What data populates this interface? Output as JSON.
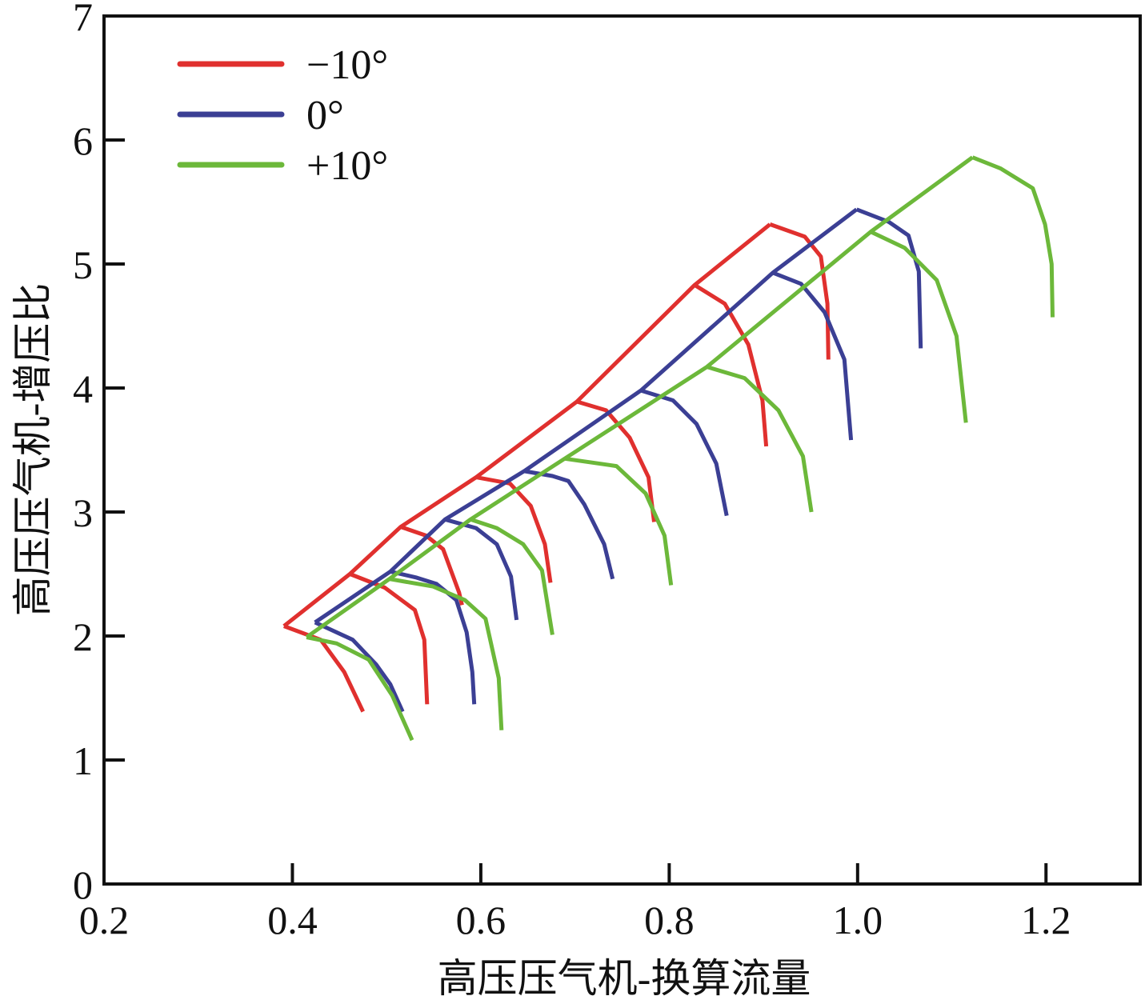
{
  "chart_data": {
    "type": "line",
    "title": "",
    "xlabel": "高压压气机-换算流量",
    "ylabel": "高压压气机-增压比",
    "xlim": [
      0.2,
      1.3
    ],
    "ylim": [
      0,
      7
    ],
    "xticks": [
      0.2,
      0.4,
      0.6,
      0.8,
      1.0,
      1.2
    ],
    "xtick_labels": [
      "0.2",
      "0.4",
      "0.6",
      "0.8",
      "1.0",
      "1.2"
    ],
    "yticks": [
      0,
      1,
      2,
      3,
      4,
      5,
      6,
      7
    ],
    "ytick_labels": [
      "0",
      "1",
      "2",
      "3",
      "4",
      "5",
      "6",
      "7"
    ],
    "grid": false,
    "legend_position": "top-left",
    "series": [
      {
        "name": "−10°",
        "color": "#e0302e",
        "surge_line": [
          [
            0.391,
            2.08
          ],
          [
            0.461,
            2.5
          ],
          [
            0.515,
            2.88
          ],
          [
            0.595,
            3.28
          ],
          [
            0.702,
            3.89
          ],
          [
            0.827,
            4.83
          ],
          [
            0.907,
            5.32
          ]
        ],
        "speed_lines": [
          [
            [
              0.391,
              2.08
            ],
            [
              0.43,
              1.97
            ],
            [
              0.455,
              1.71
            ],
            [
              0.475,
              1.39
            ]
          ],
          [
            [
              0.461,
              2.5
            ],
            [
              0.498,
              2.39
            ],
            [
              0.53,
              2.21
            ],
            [
              0.54,
              1.97
            ],
            [
              0.543,
              1.45
            ]
          ],
          [
            [
              0.515,
              2.88
            ],
            [
              0.542,
              2.81
            ],
            [
              0.56,
              2.7
            ],
            [
              0.577,
              2.35
            ],
            [
              0.58,
              2.25
            ]
          ],
          [
            [
              0.595,
              3.28
            ],
            [
              0.631,
              3.23
            ],
            [
              0.653,
              3.05
            ],
            [
              0.668,
              2.74
            ],
            [
              0.674,
              2.43
            ]
          ],
          [
            [
              0.702,
              3.89
            ],
            [
              0.733,
              3.82
            ],
            [
              0.758,
              3.6
            ],
            [
              0.778,
              3.28
            ],
            [
              0.784,
              2.92
            ]
          ],
          [
            [
              0.827,
              4.83
            ],
            [
              0.859,
              4.68
            ],
            [
              0.884,
              4.35
            ],
            [
              0.899,
              3.9
            ],
            [
              0.903,
              3.53
            ]
          ],
          [
            [
              0.907,
              5.32
            ],
            [
              0.944,
              5.22
            ],
            [
              0.961,
              5.06
            ],
            [
              0.968,
              4.68
            ],
            [
              0.969,
              4.23
            ]
          ]
        ]
      },
      {
        "name": "0°",
        "color": "#3b3f94",
        "surge_line": [
          [
            0.424,
            2.11
          ],
          [
            0.504,
            2.52
          ],
          [
            0.562,
            2.94
          ],
          [
            0.646,
            3.33
          ],
          [
            0.77,
            3.98
          ],
          [
            0.91,
            4.93
          ],
          [
            0.999,
            5.44
          ]
        ],
        "speed_lines": [
          [
            [
              0.424,
              2.11
            ],
            [
              0.464,
              1.97
            ],
            [
              0.489,
              1.77
            ],
            [
              0.504,
              1.61
            ],
            [
              0.517,
              1.39
            ]
          ],
          [
            [
              0.504,
              2.52
            ],
            [
              0.532,
              2.47
            ],
            [
              0.553,
              2.42
            ],
            [
              0.574,
              2.29
            ],
            [
              0.585,
              2.03
            ],
            [
              0.591,
              1.71
            ],
            [
              0.593,
              1.45
            ]
          ],
          [
            [
              0.562,
              2.94
            ],
            [
              0.595,
              2.87
            ],
            [
              0.617,
              2.74
            ],
            [
              0.632,
              2.48
            ],
            [
              0.638,
              2.13
            ]
          ],
          [
            [
              0.646,
              3.33
            ],
            [
              0.676,
              3.29
            ],
            [
              0.693,
              3.25
            ],
            [
              0.71,
              3.06
            ],
            [
              0.731,
              2.74
            ],
            [
              0.74,
              2.46
            ]
          ],
          [
            [
              0.77,
              3.98
            ],
            [
              0.804,
              3.9
            ],
            [
              0.829,
              3.71
            ],
            [
              0.85,
              3.39
            ],
            [
              0.861,
              2.97
            ]
          ],
          [
            [
              0.91,
              4.93
            ],
            [
              0.94,
              4.84
            ],
            [
              0.965,
              4.61
            ],
            [
              0.986,
              4.23
            ],
            [
              0.993,
              3.58
            ]
          ],
          [
            [
              0.999,
              5.44
            ],
            [
              1.033,
              5.34
            ],
            [
              1.054,
              5.23
            ],
            [
              1.065,
              4.94
            ],
            [
              1.067,
              4.32
            ]
          ]
        ]
      },
      {
        "name": "+10°",
        "color": "#6cb83a",
        "surge_line": [
          [
            0.415,
            1.99
          ],
          [
            0.503,
            2.46
          ],
          [
            0.589,
            2.94
          ],
          [
            0.689,
            3.43
          ],
          [
            0.84,
            4.17
          ],
          [
            1.014,
            5.26
          ],
          [
            1.122,
            5.86
          ]
        ],
        "speed_lines": [
          [
            [
              0.415,
              1.99
            ],
            [
              0.447,
              1.94
            ],
            [
              0.481,
              1.81
            ],
            [
              0.506,
              1.52
            ],
            [
              0.527,
              1.16
            ]
          ],
          [
            [
              0.503,
              2.46
            ],
            [
              0.549,
              2.4
            ],
            [
              0.583,
              2.29
            ],
            [
              0.605,
              2.14
            ],
            [
              0.619,
              1.66
            ],
            [
              0.622,
              1.24
            ]
          ],
          [
            [
              0.589,
              2.94
            ],
            [
              0.617,
              2.87
            ],
            [
              0.645,
              2.74
            ],
            [
              0.665,
              2.53
            ],
            [
              0.676,
              2.01
            ]
          ],
          [
            [
              0.689,
              3.43
            ],
            [
              0.744,
              3.37
            ],
            [
              0.775,
              3.15
            ],
            [
              0.795,
              2.81
            ],
            [
              0.802,
              2.41
            ]
          ],
          [
            [
              0.84,
              4.17
            ],
            [
              0.88,
              4.08
            ],
            [
              0.916,
              3.82
            ],
            [
              0.942,
              3.45
            ],
            [
              0.951,
              3.0
            ]
          ],
          [
            [
              1.014,
              5.26
            ],
            [
              1.05,
              5.13
            ],
            [
              1.084,
              4.87
            ],
            [
              1.105,
              4.42
            ],
            [
              1.115,
              3.72
            ]
          ],
          [
            [
              1.122,
              5.86
            ],
            [
              1.152,
              5.77
            ],
            [
              1.186,
              5.61
            ],
            [
              1.199,
              5.32
            ],
            [
              1.206,
              5.0
            ],
            [
              1.207,
              4.57
            ]
          ]
        ]
      }
    ]
  }
}
